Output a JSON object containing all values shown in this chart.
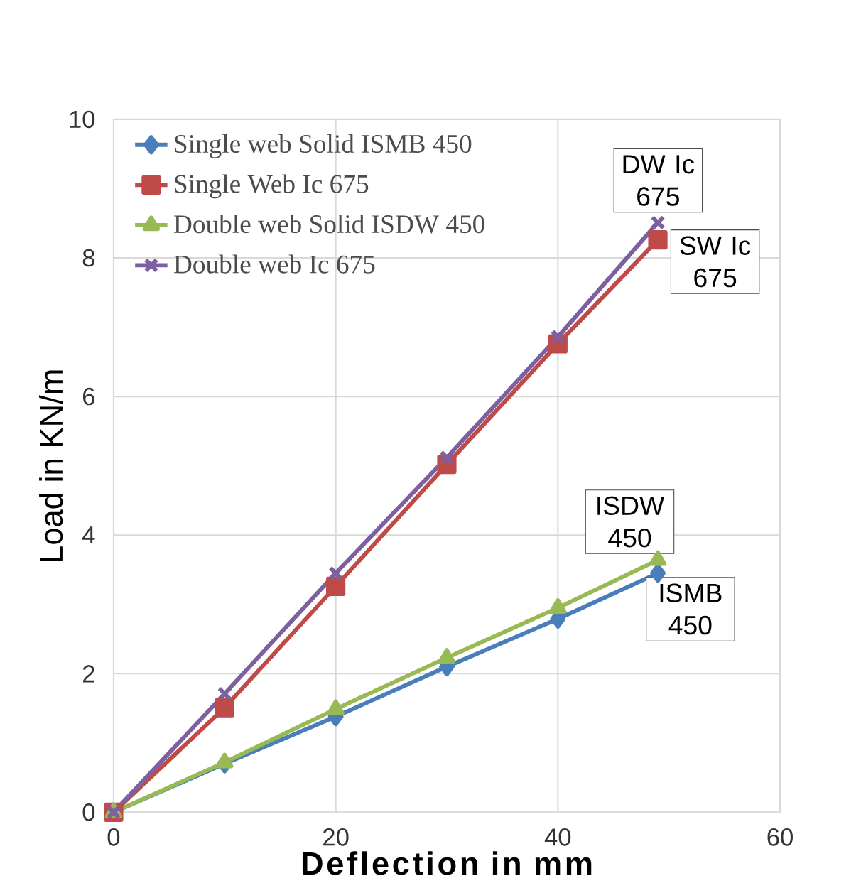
{
  "chart_data": {
    "type": "line",
    "xlabel": "Deflection in mm",
    "ylabel": "Load in KN/m",
    "x": [
      0,
      10,
      20,
      30,
      40,
      49
    ],
    "series": [
      {
        "name": "Single web Solid ISMB 450",
        "color": "#4a7ebb",
        "marker": "diamond",
        "values": [
          0,
          0.7,
          1.38,
          2.1,
          2.79,
          3.45
        ]
      },
      {
        "name": "Single Web Ic 675",
        "color": "#be4b48",
        "marker": "square",
        "values": [
          0,
          1.51,
          3.26,
          5.02,
          6.76,
          8.26
        ]
      },
      {
        "name": "Double web Solid ISDW 450",
        "color": "#98b954",
        "marker": "triangle",
        "values": [
          0,
          0.72,
          1.49,
          2.23,
          2.95,
          3.64
        ]
      },
      {
        "name": "Double web Ic 675",
        "color": "#7d60a0",
        "marker": "cross",
        "values": [
          0,
          1.71,
          3.45,
          5.12,
          6.86,
          8.51
        ]
      }
    ],
    "xlim": [
      0,
      60
    ],
    "ylim": [
      0,
      10
    ],
    "xticks": [
      0,
      20,
      40,
      60
    ],
    "yticks": [
      0,
      2,
      4,
      6,
      8,
      10
    ],
    "grid": true,
    "legend": "top left",
    "line_style": "solid",
    "annotations": [
      "DW Ic 675",
      "SW Ic 675",
      "ISDW 450",
      "ISMB 450"
    ]
  }
}
